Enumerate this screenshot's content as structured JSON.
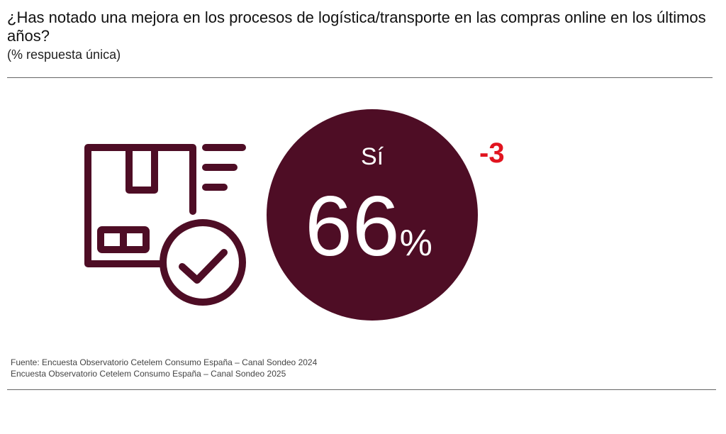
{
  "header": {
    "title": "¿Has notado una mejora en los procesos de logística/transporte en las compras online en los últimos años?",
    "subtitle": "(% respuesta única)"
  },
  "colors": {
    "accent": "#4e0d25",
    "change": "#e1141f"
  },
  "icons": [
    "package-check-icon"
  ],
  "chart_data": {
    "type": "bubble",
    "category": "Sí",
    "value": 66,
    "value_label": "66",
    "unit": "%",
    "change_label": "-3",
    "change": -3
  },
  "footer": {
    "source_line1": "Fuente: Encuesta Observatorio Cetelem Consumo España – Canal Sondeo 2024",
    "source_line2": "Encuesta Observatorio Cetelem Consumo España – Canal Sondeo 2025"
  }
}
